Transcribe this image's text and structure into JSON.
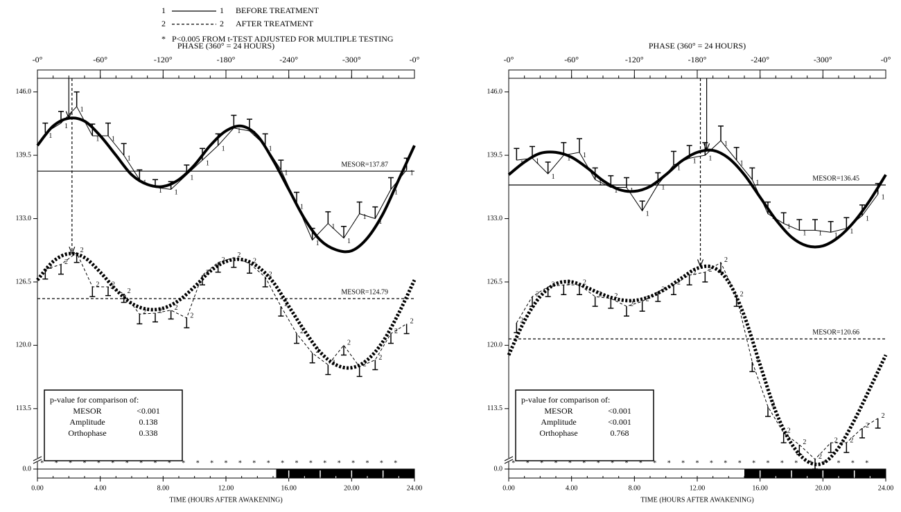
{
  "legend": {
    "footnote": "P<0.005  FROM t-TEST ADJUSTED FOR MULTIPLE TESTING"
  },
  "chart_data": [
    {
      "type": "line",
      "x_title": "TIME (HOURS AFTER AWAKENING)",
      "x2_title": "PHASE  (360° = 24 HOURS)",
      "xlim": [
        0,
        24
      ],
      "xticks": [
        {
          "value": 0,
          "label": "0.00"
        },
        {
          "value": 4,
          "label": "4.00"
        },
        {
          "value": 8,
          "label": "8.00"
        },
        {
          "value": 12,
          "label": "12.00"
        },
        {
          "value": 16,
          "label": "16.00"
        },
        {
          "value": 20,
          "label": "20.00"
        },
        {
          "value": 24,
          "label": "24.00"
        }
      ],
      "x2ticks": [
        {
          "value": 0,
          "label": "-0°"
        },
        {
          "value": 4,
          "label": "-60°"
        },
        {
          "value": 8,
          "label": "-120°"
        },
        {
          "value": 12,
          "label": "-180°"
        },
        {
          "value": 16,
          "label": "-240°"
        },
        {
          "value": 20,
          "label": "-300°"
        },
        {
          "value": 24,
          "label": "-0°"
        }
      ],
      "ylim": [
        107.3,
        147.4
      ],
      "yticks": [
        {
          "value": 0,
          "label": "0.0"
        },
        113.5,
        {
          "value": 120,
          "label": "120.0"
        },
        126.5,
        {
          "value": 133,
          "label": "133.0"
        },
        139.5,
        {
          "value": 146,
          "label": "146.0"
        }
      ],
      "axis_break": true,
      "dark_period": [
        15.2,
        24
      ],
      "significance": {
        "symbol": "*",
        "x": [
          0.3,
          1.2,
          2.1,
          3.0,
          3.9,
          4.8,
          5.7,
          6.6,
          7.5,
          8.4,
          9.3,
          10.2,
          11.1,
          12.0,
          12.9,
          13.8,
          14.7,
          15.6,
          16.5,
          17.4,
          18.3,
          19.2,
          20.1,
          21.0,
          21.9,
          22.8
        ]
      },
      "fit_x": [
        0,
        1,
        2,
        3,
        4,
        5,
        6,
        7,
        8,
        9,
        10,
        11,
        12,
        13,
        14,
        15,
        16,
        17,
        18,
        19,
        20,
        21,
        22,
        23,
        24
      ],
      "obs_x": [
        0.5,
        1.5,
        2.5,
        3.5,
        4.5,
        5.5,
        6.5,
        7.5,
        8.5,
        9.5,
        10.5,
        11.5,
        12.5,
        13.5,
        14.5,
        15.5,
        16.5,
        17.5,
        18.5,
        19.5,
        20.5,
        21.5,
        22.5,
        23.5
      ],
      "series": [
        {
          "name": "BEFORE TREATMENT",
          "symbol": "1",
          "style": "solid",
          "color": "#000000",
          "values": [
            141.8,
            142.8,
            144.5,
            141.5,
            141.5,
            139.5,
            137,
            136.2,
            136,
            137.5,
            139,
            140.5,
            142.3,
            142,
            140.5,
            138,
            134.5,
            130.8,
            132.5,
            131,
            133.5,
            133,
            136,
            138
          ],
          "errors": [
            1,
            1.2,
            1.5,
            1.2,
            1.3,
            1.2,
            1,
            0.8,
            0.8,
            1,
            1.2,
            1.2,
            1.3,
            1.2,
            1.2,
            1,
            1.2,
            1.2,
            1.2,
            1.2,
            1.2,
            1.2,
            1.2,
            1.2
          ],
          "fit": [
            140.5,
            142.5,
            143.3,
            143,
            141.5,
            139.5,
            137.5,
            136.5,
            136.3,
            137,
            138.5,
            140.5,
            142,
            142.5,
            141.5,
            139,
            136,
            133,
            130.8,
            129.8,
            129.7,
            131,
            133.5,
            137,
            140.5
          ],
          "mesor": {
            "value": 137.87,
            "label": "MESOR=137.87"
          },
          "acrophase": 2.0,
          "acrophase_level": 143.3
        },
        {
          "name": "AFTER TREATMENT",
          "symbol": "2",
          "style": "dashed",
          "color": "#000000",
          "values": [
            127.8,
            128.3,
            129.5,
            126,
            126,
            125.3,
            123.2,
            123.3,
            123.6,
            122.8,
            127.2,
            128.5,
            129,
            128.4,
            127,
            124,
            121.2,
            119.2,
            118,
            120,
            117.8,
            118.5,
            121.2,
            122.2
          ],
          "errors": [
            1,
            1,
            1,
            1,
            0.9,
            0.9,
            1,
            0.9,
            0.9,
            1,
            1,
            1,
            1,
            1,
            1,
            1,
            1,
            1,
            1,
            1,
            1,
            1,
            1,
            1
          ],
          "fit": [
            126.7,
            128.6,
            129.4,
            129,
            127.5,
            125.7,
            124.3,
            123.7,
            123.8,
            124.6,
            126,
            127.6,
            128.6,
            128.8,
            128.1,
            126.5,
            124,
            121.5,
            119.3,
            118,
            117.7,
            118.5,
            120.4,
            123.3,
            126.7
          ],
          "mesor": {
            "value": 124.79,
            "label": "MESOR=124.79"
          },
          "acrophase": 2.2,
          "acrophase_level": 129.4
        }
      ],
      "stats_box": {
        "title": "p-value  for  comparison  of:",
        "rows": [
          [
            "MESOR",
            "<0.001"
          ],
          [
            "Amplitude",
            "0.138"
          ],
          [
            "Orthophase",
            "0.338"
          ]
        ]
      }
    },
    {
      "type": "line",
      "x_title": "TIME (HOURS AFTER AWAKENING)",
      "x2_title": "PHASE  (360° = 24 HOURS)",
      "xlim": [
        0,
        24
      ],
      "xticks": [
        {
          "value": 0,
          "label": "0.00"
        },
        {
          "value": 4,
          "label": "4.00"
        },
        {
          "value": 8,
          "label": "8.00"
        },
        {
          "value": 12,
          "label": "12.00"
        },
        {
          "value": 16,
          "label": "16.00"
        },
        {
          "value": 20,
          "label": "20.00"
        },
        {
          "value": 24,
          "label": "24.00"
        }
      ],
      "x2ticks": [
        {
          "value": 0,
          "label": "-0°"
        },
        {
          "value": 4,
          "label": "-60°"
        },
        {
          "value": 8,
          "label": "-120°"
        },
        {
          "value": 12,
          "label": "-180°"
        },
        {
          "value": 16,
          "label": "-240°"
        },
        {
          "value": 20,
          "label": "-300°"
        },
        {
          "value": 24,
          "label": "-0°"
        }
      ],
      "ylim": [
        107.3,
        147.4
      ],
      "yticks": [
        {
          "value": 0,
          "label": "0.0"
        },
        113.5,
        {
          "value": 120,
          "label": "120.0"
        },
        126.5,
        {
          "value": 133,
          "label": "133.0"
        },
        139.5,
        {
          "value": 146,
          "label": "146.0"
        }
      ],
      "axis_break": true,
      "dark_period": [
        15,
        24
      ],
      "significance": {
        "symbol": "*",
        "x": [
          0.3,
          1.2,
          2.1,
          3.0,
          3.9,
          4.8,
          5.7,
          6.6,
          7.5,
          8.4,
          9.3,
          10.2,
          11.1,
          12.0,
          12.9,
          13.8,
          14.7,
          15.6,
          16.5,
          17.4,
          18.3,
          19.2,
          20.1,
          21.0,
          21.9,
          22.8
        ]
      },
      "fit_x": [
        0,
        1,
        2,
        3,
        4,
        5,
        6,
        7,
        8,
        9,
        10,
        11,
        12,
        13,
        14,
        15,
        16,
        17,
        18,
        19,
        20,
        21,
        22,
        23,
        24
      ],
      "obs_x": [
        0.5,
        1.5,
        2.5,
        3.5,
        4.5,
        5.5,
        6.5,
        7.5,
        8.5,
        9.5,
        10.5,
        11.5,
        12.5,
        13.5,
        14.5,
        15.5,
        16.5,
        17.5,
        18.5,
        19.5,
        20.5,
        21.5,
        22.5,
        23.5
      ],
      "series": [
        {
          "name": "BEFORE TREATMENT",
          "symbol": "1",
          "style": "solid",
          "color": "#000000",
          "values": [
            139,
            139.2,
            137.6,
            139.5,
            139.8,
            137,
            136.2,
            136.2,
            133.8,
            136.5,
            138.5,
            139.2,
            139.5,
            141,
            139,
            137,
            133.5,
            132.5,
            131.8,
            131.8,
            131.6,
            132,
            133.3,
            135.5
          ],
          "errors": [
            1.2,
            1.2,
            1.2,
            1.3,
            1.4,
            1.2,
            1.2,
            1,
            1,
            1.2,
            1.4,
            1.3,
            1.3,
            1.5,
            1.3,
            1.2,
            1.2,
            1.1,
            1.1,
            1.1,
            1.1,
            1.1,
            1.1,
            1.1
          ],
          "fit": [
            137.5,
            138.8,
            139.7,
            139.8,
            139.3,
            138.2,
            136.9,
            136,
            135.8,
            136.3,
            137.5,
            138.9,
            139.8,
            140,
            139.2,
            137.5,
            135.2,
            132.9,
            131.1,
            130.2,
            130.2,
            131.1,
            132.7,
            134.9,
            137.5
          ],
          "mesor": {
            "value": 136.45,
            "label": "MESOR=136.45"
          },
          "acrophase": 12.6,
          "acrophase_level": 140
        },
        {
          "name": "AFTER TREATMENT",
          "symbol": "2",
          "style": "dashed",
          "color": "#000000",
          "values": [
            122.3,
            125,
            126,
            126.2,
            126.2,
            125,
            124.8,
            124,
            124.5,
            125.5,
            126.2,
            127.2,
            127.5,
            128.5,
            125,
            118.3,
            113.7,
            111,
            109.8,
            108.3,
            110,
            110,
            111.5,
            112.5
          ],
          "errors": [
            1,
            1,
            1,
            1,
            1,
            1,
            1,
            1,
            1,
            1,
            1,
            1,
            1,
            1,
            1,
            1,
            1,
            1,
            1,
            1,
            1,
            1,
            1,
            1
          ],
          "fit": [
            119,
            122.5,
            125,
            126.3,
            126.5,
            125.9,
            125.2,
            124.7,
            124.6,
            125,
            125.8,
            126.9,
            127.9,
            128,
            126.5,
            123,
            118,
            113.2,
            109.9,
            108.1,
            107.9,
            109.5,
            112.3,
            115.6,
            119
          ],
          "mesor": {
            "value": 120.66,
            "label": "MESOR=120.66"
          },
          "acrophase": 12.2,
          "acrophase_level": 128.1
        }
      ],
      "stats_box": {
        "title": "p-value  for  comparison  of:",
        "rows": [
          [
            "MESOR",
            "<0.001"
          ],
          [
            "Amplitude",
            "<0.001"
          ],
          [
            "Orthophase",
            "0.768"
          ]
        ]
      }
    }
  ]
}
